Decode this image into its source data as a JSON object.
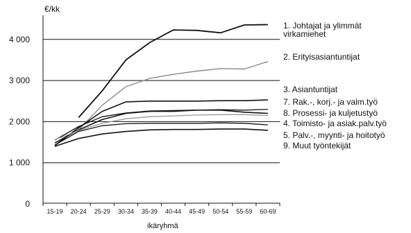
{
  "chart_data": {
    "type": "line",
    "ylabel": "€/kk",
    "xlabel": "ikäryhmä",
    "ylim": [
      0,
      4600
    ],
    "yticks": [
      0,
      1000,
      2000,
      3000,
      4000
    ],
    "ytick_labels": [
      "0",
      "1 000",
      "2 000",
      "3 000",
      "4 000"
    ],
    "categories": [
      "15-19",
      "20-24",
      "25-29",
      "30-34",
      "35-39",
      "40-44",
      "45-49",
      "50-54",
      "55-59",
      "60-69"
    ],
    "grid": "horizontal",
    "legend_position": "right",
    "series": [
      {
        "name": "1. Johtajat ja ylimmät virkamiehet",
        "legend_lines": [
          "1. Johtajat ja ylimmät",
          "virkamiehet"
        ],
        "color": "#111111",
        "width": 1.8,
        "values": [
          null,
          2100,
          2750,
          3500,
          3920,
          4230,
          4220,
          4160,
          4350,
          4360
        ]
      },
      {
        "name": "2. Erityisasiantuntijat",
        "legend_lines": [
          "2. Erityisasiantuntijat"
        ],
        "color": "#8a8a8a",
        "width": 1.4,
        "values": [
          null,
          1800,
          2400,
          2850,
          3050,
          3150,
          3230,
          3290,
          3280,
          3460
        ]
      },
      {
        "name": "3. Asiantuntijat",
        "legend_lines": [
          "3. Asiantuntijat"
        ],
        "color": "#111111",
        "width": 1.6,
        "values": [
          1420,
          1850,
          2250,
          2480,
          2500,
          2500,
          2500,
          2510,
          2510,
          2530
        ]
      },
      {
        "name": "7. Rak.-, korj.- ja valm.työ",
        "legend_lines": [
          "7. Rak.-, korj.- ja valm.työ"
        ],
        "color": "#111111",
        "width": 1.3,
        "values": [
          1550,
          1880,
          2120,
          2210,
          2260,
          2270,
          2280,
          2290,
          2280,
          2300
        ]
      },
      {
        "name": "8. Prosessi- ja kuljetustyö",
        "legend_lines": [
          "8. Prosessi- ja kuljetustyö"
        ],
        "color": "#111111",
        "width": 1.6,
        "values": [
          1480,
          1800,
          2050,
          2200,
          2250,
          2250,
          2280,
          2280,
          2230,
          2200
        ]
      },
      {
        "name": "4. Toimisto- ja asiak.palv.työ",
        "legend_lines": [
          "4. Toimisto- ja asiak.palv.työ"
        ],
        "color": "#999999",
        "width": 1.3,
        "values": [
          1560,
          1780,
          1960,
          2070,
          2120,
          2140,
          2160,
          2170,
          2170,
          2150
        ]
      },
      {
        "name": "5. Palv.-, myynti- ja hoitotyö",
        "legend_lines": [
          "5. Palv.-, myynti- ja hoitotyö"
        ],
        "color": "#111111",
        "width": 1.3,
        "values": [
          1430,
          1760,
          1900,
          1950,
          1960,
          1960,
          1960,
          1970,
          1960,
          1920
        ]
      },
      {
        "name": "9. Muut työntekijät",
        "legend_lines": [
          "9. Muut työntekijät"
        ],
        "color": "#111111",
        "width": 1.6,
        "values": [
          1400,
          1590,
          1700,
          1760,
          1800,
          1810,
          1810,
          1820,
          1820,
          1790
        ]
      }
    ]
  }
}
